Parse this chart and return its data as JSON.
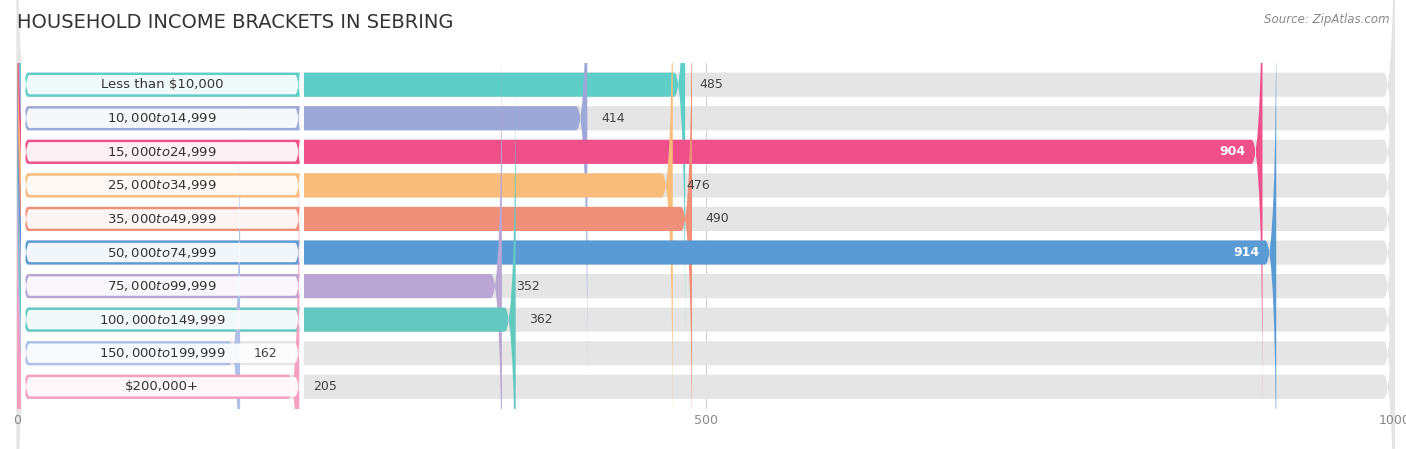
{
  "title": "HOUSEHOLD INCOME BRACKETS IN SEBRING",
  "source": "Source: ZipAtlas.com",
  "categories": [
    "Less than $10,000",
    "$10,000 to $14,999",
    "$15,000 to $24,999",
    "$25,000 to $34,999",
    "$35,000 to $49,999",
    "$50,000 to $74,999",
    "$75,000 to $99,999",
    "$100,000 to $149,999",
    "$150,000 to $199,999",
    "$200,000+"
  ],
  "values": [
    485,
    414,
    904,
    476,
    490,
    914,
    352,
    362,
    162,
    205
  ],
  "bar_colors": [
    "#5ECEC8",
    "#9DA8D8",
    "#F0508A",
    "#F9BC7A",
    "#F0907A",
    "#5B9BD5",
    "#B9A6D4",
    "#62C8C0",
    "#AEBFE8",
    "#F5A0C0"
  ],
  "value_text_colors": [
    "#444444",
    "#444444",
    "#ffffff",
    "#444444",
    "#444444",
    "#ffffff",
    "#444444",
    "#444444",
    "#444444",
    "#444444"
  ],
  "xlim": [
    0,
    1000
  ],
  "xticks": [
    0,
    500,
    1000
  ],
  "bar_bg_color": "#e5e5e5",
  "title_fontsize": 14,
  "label_fontsize": 9.5,
  "value_fontsize": 9,
  "source_fontsize": 8.5,
  "title_color": "#333333",
  "source_color": "#888888",
  "tick_color": "#888888",
  "grid_color": "#cccccc"
}
